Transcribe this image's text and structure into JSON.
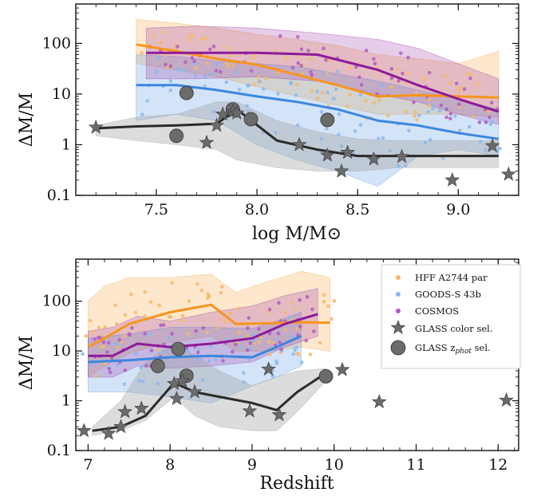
{
  "colors": {
    "hff": "#f7941d",
    "goods": "#3b86e0",
    "cosmos": "#8e1a9a",
    "glass": "#2b2b2b",
    "glass_marker": "#6b6b6b",
    "glass_band": "#9a9a9a",
    "hff_dot": "#f6b86a",
    "goods_dot": "#8ab8ee",
    "cosmos_dot": "#b25cc2"
  },
  "chart_data": [
    {
      "type": "line",
      "panel": "top",
      "xlabel": "log M/M⊙",
      "ylabel": "ΔM/M",
      "xlim": [
        7.1,
        9.3
      ],
      "ylim": [
        0.1,
        600
      ],
      "yscale": "log",
      "xticks": [
        7.5,
        8.0,
        8.5,
        9.0
      ],
      "xtick_labels": [
        "7.5",
        "8.0",
        "8.5",
        "9.0"
      ],
      "yticks": [
        0.1,
        1,
        10,
        100
      ],
      "ytick_labels": [
        "0.1",
        "1",
        "10",
        "100"
      ],
      "series": [
        {
          "key": "hff",
          "x": [
            7.4,
            7.6,
            7.8,
            8.0,
            8.2,
            8.4,
            8.6,
            8.8,
            9.0,
            9.2
          ],
          "y": [
            95,
            70,
            50,
            38,
            24,
            15,
            9,
            9.5,
            9,
            8.5
          ],
          "lo": [
            40,
            30,
            22,
            14,
            9,
            6,
            4,
            4,
            4,
            3.5
          ],
          "hi": [
            300,
            250,
            200,
            150,
            120,
            90,
            60,
            50,
            40,
            70
          ]
        },
        {
          "key": "goods",
          "x": [
            7.4,
            7.6,
            7.8,
            8.0,
            8.2,
            8.4,
            8.6,
            8.8,
            9.0,
            9.2
          ],
          "y": [
            15,
            15,
            12,
            9,
            7,
            5,
            3,
            2.4,
            1.7,
            1.3
          ],
          "lo": [
            3,
            4,
            3,
            1,
            0.5,
            0.3,
            0.15,
            0.6,
            0.8,
            0.6
          ],
          "hi": [
            60,
            55,
            45,
            40,
            35,
            25,
            18,
            12,
            8,
            5
          ]
        },
        {
          "key": "cosmos",
          "x": [
            7.45,
            7.7,
            8.0,
            8.3,
            8.6,
            8.8,
            9.0,
            9.2
          ],
          "y": [
            65,
            65,
            65,
            60,
            30,
            15,
            8,
            4.5
          ],
          "lo": [
            20,
            20,
            22,
            18,
            10,
            7,
            4,
            2.5
          ],
          "hi": [
            200,
            220,
            200,
            160,
            120,
            80,
            40,
            20
          ]
        },
        {
          "key": "glass",
          "x": [
            7.2,
            7.4,
            7.6,
            7.8,
            7.9,
            8.1,
            8.3,
            8.5,
            8.7,
            8.9,
            9.2
          ],
          "y": [
            2.1,
            2.3,
            2.4,
            2.6,
            5.0,
            1.2,
            0.8,
            0.6,
            0.6,
            0.6,
            0.6
          ],
          "lo": [
            1.5,
            1.2,
            1.0,
            0.8,
            0.5,
            0.35,
            0.3,
            0.3,
            0.35,
            0.35,
            0.35
          ],
          "hi": [
            2.4,
            3.5,
            4.0,
            7.0,
            7.0,
            3.0,
            1.8,
            1.3,
            1.2,
            1.2,
            1.2
          ]
        }
      ],
      "stars": [
        [
          7.2,
          2.2
        ],
        [
          7.75,
          1.1
        ],
        [
          7.8,
          2.4
        ],
        [
          7.83,
          4.0
        ],
        [
          7.88,
          4.5
        ],
        [
          7.9,
          4.2
        ],
        [
          8.21,
          1.0
        ],
        [
          8.35,
          0.62
        ],
        [
          8.42,
          0.3
        ],
        [
          8.45,
          0.7
        ],
        [
          8.58,
          0.52
        ],
        [
          8.72,
          0.58
        ],
        [
          8.97,
          0.2
        ],
        [
          9.17,
          0.95
        ],
        [
          9.25,
          0.26
        ]
      ],
      "circles": [
        [
          7.65,
          10.5
        ],
        [
          7.6,
          1.5
        ],
        [
          7.88,
          5.0
        ],
        [
          7.97,
          3.2
        ],
        [
          8.35,
          3.1
        ]
      ]
    },
    {
      "type": "line",
      "panel": "bottom",
      "xlabel": "Redshift",
      "ylabel": "ΔM/M",
      "xlim": [
        6.85,
        12.25
      ],
      "ylim": [
        0.1,
        700
      ],
      "yscale": "log",
      "xticks": [
        7,
        8,
        9,
        10,
        11,
        12
      ],
      "xtick_labels": [
        "7",
        "8",
        "9",
        "10",
        "11",
        "12"
      ],
      "yticks": [
        0.1,
        1,
        10,
        100
      ],
      "ytick_labels": [
        "0.1",
        "1",
        "10",
        "100"
      ],
      "series": [
        {
          "key": "hff",
          "x": [
            7.0,
            7.2,
            7.5,
            8.0,
            8.5,
            8.8,
            9.2,
            9.6,
            9.95
          ],
          "y": [
            12,
            18,
            35,
            60,
            85,
            35,
            36,
            38,
            37
          ],
          "lo": [
            3,
            5,
            9,
            15,
            20,
            10,
            10,
            12,
            10
          ],
          "hi": [
            100,
            200,
            300,
            300,
            350,
            150,
            250,
            400,
            300
          ]
        },
        {
          "key": "goods",
          "x": [
            7.0,
            7.5,
            8.0,
            8.5,
            9.0,
            9.3,
            9.6
          ],
          "y": [
            6,
            6.5,
            7.5,
            8,
            7.5,
            12,
            20
          ],
          "lo": [
            1.5,
            1.5,
            1.2,
            0.9,
            2.0,
            3.0,
            5.0
          ],
          "hi": [
            18,
            22,
            30,
            30,
            28,
            40,
            60
          ]
        },
        {
          "key": "cosmos",
          "x": [
            7.0,
            7.3,
            7.6,
            8.0,
            8.5,
            9.0,
            9.4,
            9.8
          ],
          "y": [
            8,
            8,
            14,
            12,
            14,
            18,
            35,
            55
          ],
          "lo": [
            3,
            3,
            5,
            4.5,
            5,
            6,
            12,
            20
          ],
          "hi": [
            25,
            30,
            50,
            40,
            60,
            80,
            130,
            180
          ]
        },
        {
          "key": "glass",
          "x": [
            7.05,
            7.4,
            7.7,
            8.05,
            8.3,
            8.6,
            9.0,
            9.3,
            9.55,
            9.9
          ],
          "y": [
            0.25,
            0.3,
            0.5,
            2.3,
            1.5,
            1.2,
            0.9,
            0.65,
            1.5,
            3.6
          ],
          "lo": [
            0.2,
            0.25,
            0.4,
            1.2,
            0.5,
            0.3,
            0.25,
            0.25,
            0.6,
            2.5
          ],
          "hi": [
            0.3,
            1.0,
            6.0,
            15,
            8.0,
            4.0,
            2.0,
            3.0,
            4.0,
            4.5
          ]
        }
      ],
      "stars": [
        [
          6.95,
          0.25
        ],
        [
          7.25,
          0.22
        ],
        [
          7.4,
          0.3
        ],
        [
          7.45,
          0.6
        ],
        [
          7.65,
          0.7
        ],
        [
          8.05,
          2.2
        ],
        [
          8.08,
          1.1
        ],
        [
          8.15,
          2.5
        ],
        [
          8.3,
          1.5
        ],
        [
          8.97,
          0.62
        ],
        [
          9.2,
          4.3
        ],
        [
          9.33,
          0.52
        ],
        [
          10.1,
          4.2
        ],
        [
          10.55,
          0.95
        ],
        [
          12.1,
          1.02
        ]
      ],
      "circles": [
        [
          7.85,
          5.0
        ],
        [
          8.1,
          11.0
        ],
        [
          8.2,
          3.2
        ],
        [
          9.9,
          3.1
        ]
      ]
    }
  ],
  "legend": [
    {
      "key": "hff",
      "label": "HFF A2744 par"
    },
    {
      "key": "goods",
      "label": "GOODS-S 43b"
    },
    {
      "key": "cosmos",
      "label": "COSMOS"
    },
    {
      "key": "glass_star",
      "label": "GLASS color sel."
    },
    {
      "key": "glass_circle",
      "label_main": "GLASS z",
      "label_sub": "phot",
      "label_end": " sel."
    }
  ]
}
